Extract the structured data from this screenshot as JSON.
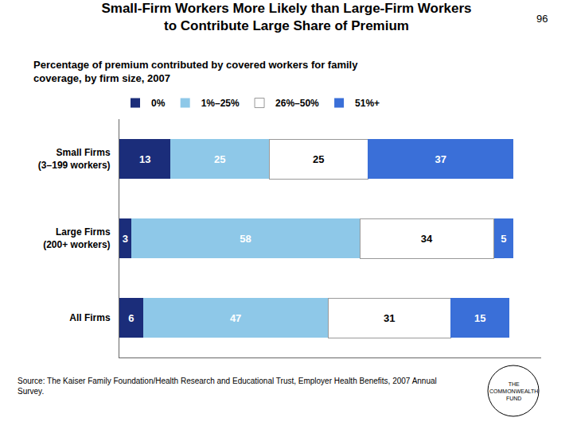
{
  "chart_data": {
    "type": "bar",
    "orientation": "horizontal",
    "stacked": true,
    "data_labels": true,
    "tick_labels": "y",
    "grid": false,
    "legend": "upper left",
    "title": "Small-Firm Workers More Likely than Large-Firm Workers\nto Contribute Large Share of Premium",
    "subtitle": "Percentage of premium contributed by covered workers for family\ncoverage, by firm size, 2007",
    "categories": [
      "Small Firms\n(3–199 workers)",
      "Large Firms\n(200+ workers)",
      "All Firms"
    ],
    "series": [
      {
        "name": "0%",
        "color": "#1b2d7a",
        "values": [
          13,
          3,
          6
        ]
      },
      {
        "name": "1%–25%",
        "color": "#8ec8e8",
        "values": [
          25,
          58,
          47
        ]
      },
      {
        "name": "26%–50%",
        "color": "#ffffff",
        "values": [
          25,
          34,
          31
        ]
      },
      {
        "name": "51%+",
        "color": "#3a6fd8",
        "values": [
          37,
          5,
          15
        ]
      }
    ],
    "xlim": [
      0,
      107
    ],
    "xticks": [],
    "annotations": [
      "96",
      "Source: The Kaiser Family Foundation/Health Research and Educational Trust, Employer Health Benefits, 2007 Annual\nSurvey.",
      "THE\nCOMMONWEALTH\nFUND"
    ]
  }
}
